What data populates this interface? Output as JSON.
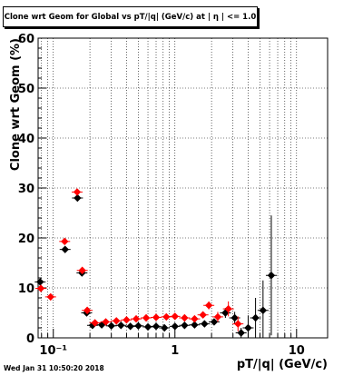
{
  "chart_data": {
    "type": "scatter",
    "title": "Clone wrt Geom for Global vs pT/|q| (GeV/c) at |  η | <= 1.0",
    "xlabel": "pT/|q| (GeV/c)",
    "ylabel": "Clone wrt Geom (%)",
    "x_scale": "log",
    "xlim": [
      0.075,
      18
    ],
    "ylim": [
      0,
      60
    ],
    "grid": true,
    "y_ticks": [
      0,
      10,
      20,
      30,
      40,
      50,
      60
    ],
    "x_tick_labels": [
      {
        "value": 0.1,
        "label": "10⁻¹"
      },
      {
        "value": 1,
        "label": "1"
      },
      {
        "value": 10,
        "label": "10"
      }
    ],
    "series": [
      {
        "color": "#000000",
        "marker": "diamond",
        "points": [
          {
            "x": 0.078,
            "y": 11.2,
            "yerr": 0
          },
          {
            "x": 0.125,
            "y": 17.7,
            "yerr": 0
          },
          {
            "x": 0.158,
            "y": 28.0,
            "yerr": 0
          },
          {
            "x": 0.172,
            "y": 13.0,
            "yerr": 0
          },
          {
            "x": 0.188,
            "y": 5.0,
            "yerr": 0
          },
          {
            "x": 0.21,
            "y": 2.5,
            "yerr": 0
          },
          {
            "x": 0.25,
            "y": 2.6,
            "yerr": 0
          },
          {
            "x": 0.3,
            "y": 2.4,
            "yerr": 0
          },
          {
            "x": 0.36,
            "y": 2.5,
            "yerr": 0
          },
          {
            "x": 0.43,
            "y": 2.3,
            "yerr": 0
          },
          {
            "x": 0.5,
            "y": 2.4,
            "yerr": 0
          },
          {
            "x": 0.6,
            "y": 2.2,
            "yerr": 0
          },
          {
            "x": 0.7,
            "y": 2.3,
            "yerr": 0
          },
          {
            "x": 0.82,
            "y": 2.0,
            "yerr": 0
          },
          {
            "x": 1.0,
            "y": 2.3,
            "yerr": 0
          },
          {
            "x": 1.2,
            "y": 2.5,
            "yerr": 0
          },
          {
            "x": 1.45,
            "y": 2.6,
            "yerr": 0
          },
          {
            "x": 1.75,
            "y": 2.8,
            "yerr": 0
          },
          {
            "x": 2.1,
            "y": 3.2,
            "yerr": 0.5
          },
          {
            "x": 2.6,
            "y": 5.0,
            "yerr": 1.0
          },
          {
            "x": 3.1,
            "y": 4.0,
            "yerr": 1.2
          },
          {
            "x": 3.5,
            "y": 1.0,
            "yerr": 1.0
          },
          {
            "x": 4.0,
            "y": 2.0,
            "yerr": 2.5
          },
          {
            "x": 4.6,
            "y": 4.0,
            "yerr": 4.0
          },
          {
            "x": 5.3,
            "y": 5.5,
            "yerr": 6.0
          },
          {
            "x": 6.2,
            "y": 12.5,
            "yerr": 12.0
          }
        ]
      },
      {
        "color": "#ff0000",
        "marker": "diamond",
        "points": [
          {
            "x": 0.079,
            "y": 9.9,
            "yerr": 0
          },
          {
            "x": 0.095,
            "y": 8.2,
            "yerr": 0
          },
          {
            "x": 0.124,
            "y": 19.3,
            "yerr": 0
          },
          {
            "x": 0.157,
            "y": 29.2,
            "yerr": 0
          },
          {
            "x": 0.173,
            "y": 13.5,
            "yerr": 0
          },
          {
            "x": 0.19,
            "y": 5.5,
            "yerr": 0
          },
          {
            "x": 0.22,
            "y": 3.0,
            "yerr": 0
          },
          {
            "x": 0.27,
            "y": 3.2,
            "yerr": 0
          },
          {
            "x": 0.33,
            "y": 3.4,
            "yerr": 0
          },
          {
            "x": 0.4,
            "y": 3.6,
            "yerr": 0
          },
          {
            "x": 0.48,
            "y": 3.8,
            "yerr": 0
          },
          {
            "x": 0.58,
            "y": 4.0,
            "yerr": 0
          },
          {
            "x": 0.7,
            "y": 4.1,
            "yerr": 0
          },
          {
            "x": 0.85,
            "y": 4.2,
            "yerr": 0
          },
          {
            "x": 1.0,
            "y": 4.3,
            "yerr": 0
          },
          {
            "x": 1.2,
            "y": 4.0,
            "yerr": 0
          },
          {
            "x": 1.45,
            "y": 3.8,
            "yerr": 0
          },
          {
            "x": 1.7,
            "y": 4.6,
            "yerr": 0
          },
          {
            "x": 1.9,
            "y": 6.5,
            "yerr": 0.8
          },
          {
            "x": 2.25,
            "y": 4.2,
            "yerr": 1.0
          },
          {
            "x": 2.75,
            "y": 5.8,
            "yerr": 1.5
          },
          {
            "x": 3.3,
            "y": 2.8,
            "yerr": 1.5
          }
        ]
      }
    ],
    "footer": "Wed Jan 31 10:50:20 2018"
  }
}
